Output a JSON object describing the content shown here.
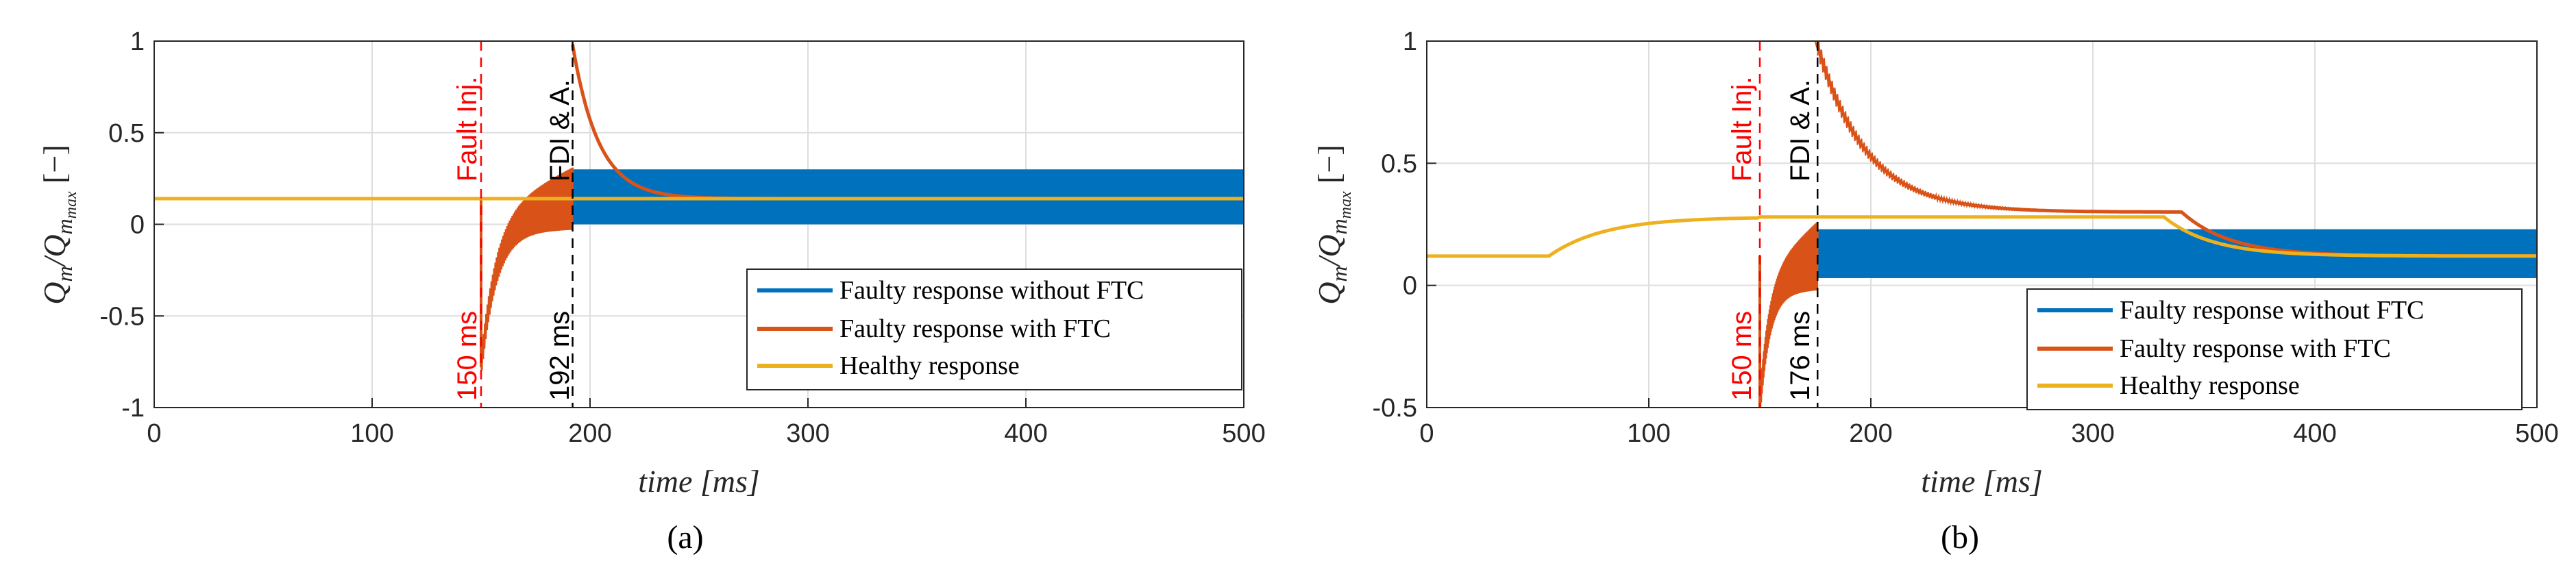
{
  "colors": {
    "faulty_no_ftc": "#0072BD",
    "faulty_ftc": "#D95319",
    "healthy": "#EDB120",
    "fault_marker": "#FF0000",
    "fdi_marker": "#000000"
  },
  "chart_data": [
    {
      "type": "line",
      "panel": "a",
      "caption": "(a)",
      "xlabel": "time [ms]",
      "ylabel": "Q_m/Q_m_max [−]",
      "xlim": [
        0,
        500
      ],
      "ylim": [
        -1,
        1
      ],
      "xticks": [
        0,
        100,
        200,
        300,
        400,
        500
      ],
      "yticks": [
        -1,
        -0.5,
        0,
        0.5,
        1
      ],
      "xtick_labels": [
        "0",
        "100",
        "200",
        "300",
        "400",
        "500"
      ],
      "ytick_labels": [
        "-1",
        "-0.5",
        "0",
        "0.5",
        "1"
      ],
      "grid": true,
      "legend_position": "bottom-right",
      "series": [
        {
          "name": "Faulty response without FTC",
          "color_key": "faulty_no_ftc",
          "oscillation_band": [
            192,
            500,
            0.0,
            0.3
          ]
        },
        {
          "name": "Faulty response with FTC",
          "color_key": "faulty_ftc",
          "key_points": {
            "fault_time": 150,
            "fault_min": -0.78,
            "detect_time": 192,
            "peak": 0.98,
            "settle": 0.14
          }
        },
        {
          "name": "Healthy response",
          "color_key": "healthy",
          "x": [
            0,
            500
          ],
          "y": [
            0.14,
            0.14
          ]
        }
      ],
      "annotations": [
        {
          "text": "Fault Inj.",
          "x": 150,
          "color_key": "fault_marker",
          "position": "top"
        },
        {
          "text": "150 ms",
          "x": 150,
          "color_key": "fault_marker",
          "position": "bottom"
        },
        {
          "text": "FDI & A.",
          "x": 192,
          "color_key": "fdi_marker",
          "position": "top"
        },
        {
          "text": "192 ms",
          "x": 192,
          "color_key": "fdi_marker",
          "position": "bottom"
        }
      ]
    },
    {
      "type": "line",
      "panel": "b",
      "caption": "(b)",
      "xlabel": "time [ms]",
      "ylabel": "Q_m/Q_m_max [−]",
      "xlim": [
        0,
        500
      ],
      "ylim": [
        -0.5,
        1
      ],
      "xticks": [
        0,
        100,
        200,
        300,
        400,
        500
      ],
      "yticks": [
        -0.5,
        0,
        0.5,
        1
      ],
      "xtick_labels": [
        "0",
        "100",
        "200",
        "300",
        "400",
        "500"
      ],
      "ytick_labels": [
        "-0.5",
        "0",
        "0.5",
        "1"
      ],
      "grid": true,
      "legend_position": "bottom-right",
      "series": [
        {
          "name": "Faulty response without FTC",
          "color_key": "faulty_no_ftc",
          "oscillation_band": [
            176,
            500,
            0.03,
            0.23
          ]
        },
        {
          "name": "Faulty response with FTC",
          "color_key": "faulty_ftc",
          "key_points": {
            "fault_time": 150,
            "fault_min": -0.5,
            "detect_time": 176,
            "peak": 0.98,
            "plateau": 0.3,
            "settle": 0.12
          }
        },
        {
          "name": "Healthy response",
          "color_key": "healthy",
          "x": [
            0,
            55,
            100,
            150,
            330,
            340,
            400,
            500
          ],
          "y": [
            0.12,
            0.12,
            0.26,
            0.28,
            0.28,
            0.27,
            0.13,
            0.12
          ]
        }
      ],
      "annotations": [
        {
          "text": "Fault Inj.",
          "x": 150,
          "color_key": "fault_marker",
          "position": "top"
        },
        {
          "text": "150 ms",
          "x": 150,
          "color_key": "fault_marker",
          "position": "bottom"
        },
        {
          "text": "FDI & A.",
          "x": 176,
          "color_key": "fdi_marker",
          "position": "top"
        },
        {
          "text": "176 ms",
          "x": 176,
          "color_key": "fdi_marker",
          "position": "bottom"
        }
      ]
    }
  ]
}
